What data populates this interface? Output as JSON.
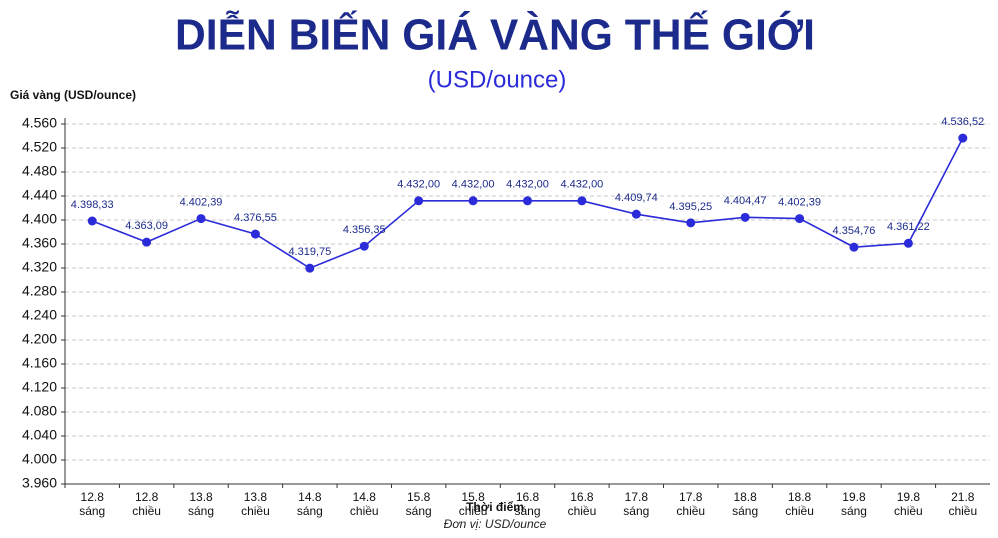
{
  "chart_data": {
    "type": "line",
    "title": "DIỄN BIẾN GIÁ VÀNG THẾ GIỚI",
    "subtitle": "(USD/ounce)",
    "y_label": "Giá vàng (USD/ounce)",
    "x_label": "Thời điểm",
    "note": "Đơn vị: USD/ounce",
    "categories": [
      [
        "12.8",
        "sáng"
      ],
      [
        "12.8",
        "chiều"
      ],
      [
        "13.8",
        "sáng"
      ],
      [
        "13.8",
        "chiều"
      ],
      [
        "14.8",
        "sáng"
      ],
      [
        "14.8",
        "chiều"
      ],
      [
        "15.8",
        "sáng"
      ],
      [
        "15.8",
        "chiều"
      ],
      [
        "16.8",
        "sáng"
      ],
      [
        "16.8",
        "chiều"
      ],
      [
        "17.8",
        "sáng"
      ],
      [
        "17.8",
        "chiều"
      ],
      [
        "18.8",
        "sáng"
      ],
      [
        "18.8",
        "chiều"
      ],
      [
        "19.8",
        "sáng"
      ],
      [
        "19.8",
        "chiều"
      ],
      [
        "21.8",
        "chiều"
      ]
    ],
    "values": [
      4398.33,
      4363.09,
      4402.39,
      4376.55,
      4319.75,
      4356.35,
      4432.0,
      4432.0,
      4432.0,
      4432.0,
      4409.74,
      4395.25,
      4404.47,
      4402.39,
      4354.76,
      4361.22,
      4536.52
    ],
    "value_labels": [
      "4.398,33",
      "4.363,09",
      "4.402,39",
      "4.376,55",
      "4.319,75",
      "4.356,35",
      "4.432,00",
      "4.432,00",
      "4.432,00",
      "4.432,00",
      "4.409,74",
      "4.395,25",
      "4.404,47",
      "4.402,39",
      "4.354,76",
      "4.361,22",
      "4.536,52"
    ],
    "color": "#2b2bd9",
    "ylim": [
      3960,
      4570
    ],
    "yticks": [
      {
        "value": 3960,
        "label": "3.960"
      },
      {
        "value": 4000,
        "label": "4.000"
      },
      {
        "value": 4040,
        "label": "4.040"
      },
      {
        "value": 4080,
        "label": "4.080"
      },
      {
        "value": 4120,
        "label": "4.120"
      },
      {
        "value": 4160,
        "label": "4.160"
      },
      {
        "value": 4200,
        "label": "4.200"
      },
      {
        "value": 4240,
        "label": "4.240"
      },
      {
        "value": 4280,
        "label": "4.280"
      },
      {
        "value": 4320,
        "label": "4.320"
      },
      {
        "value": 4360,
        "label": "4.360"
      },
      {
        "value": 4400,
        "label": "4.400"
      },
      {
        "value": 4440,
        "label": "4.440"
      },
      {
        "value": 4480,
        "label": "4.480"
      },
      {
        "value": 4520,
        "label": "4.520"
      },
      {
        "value": 4560,
        "label": "4.560"
      }
    ],
    "grid": true
  }
}
